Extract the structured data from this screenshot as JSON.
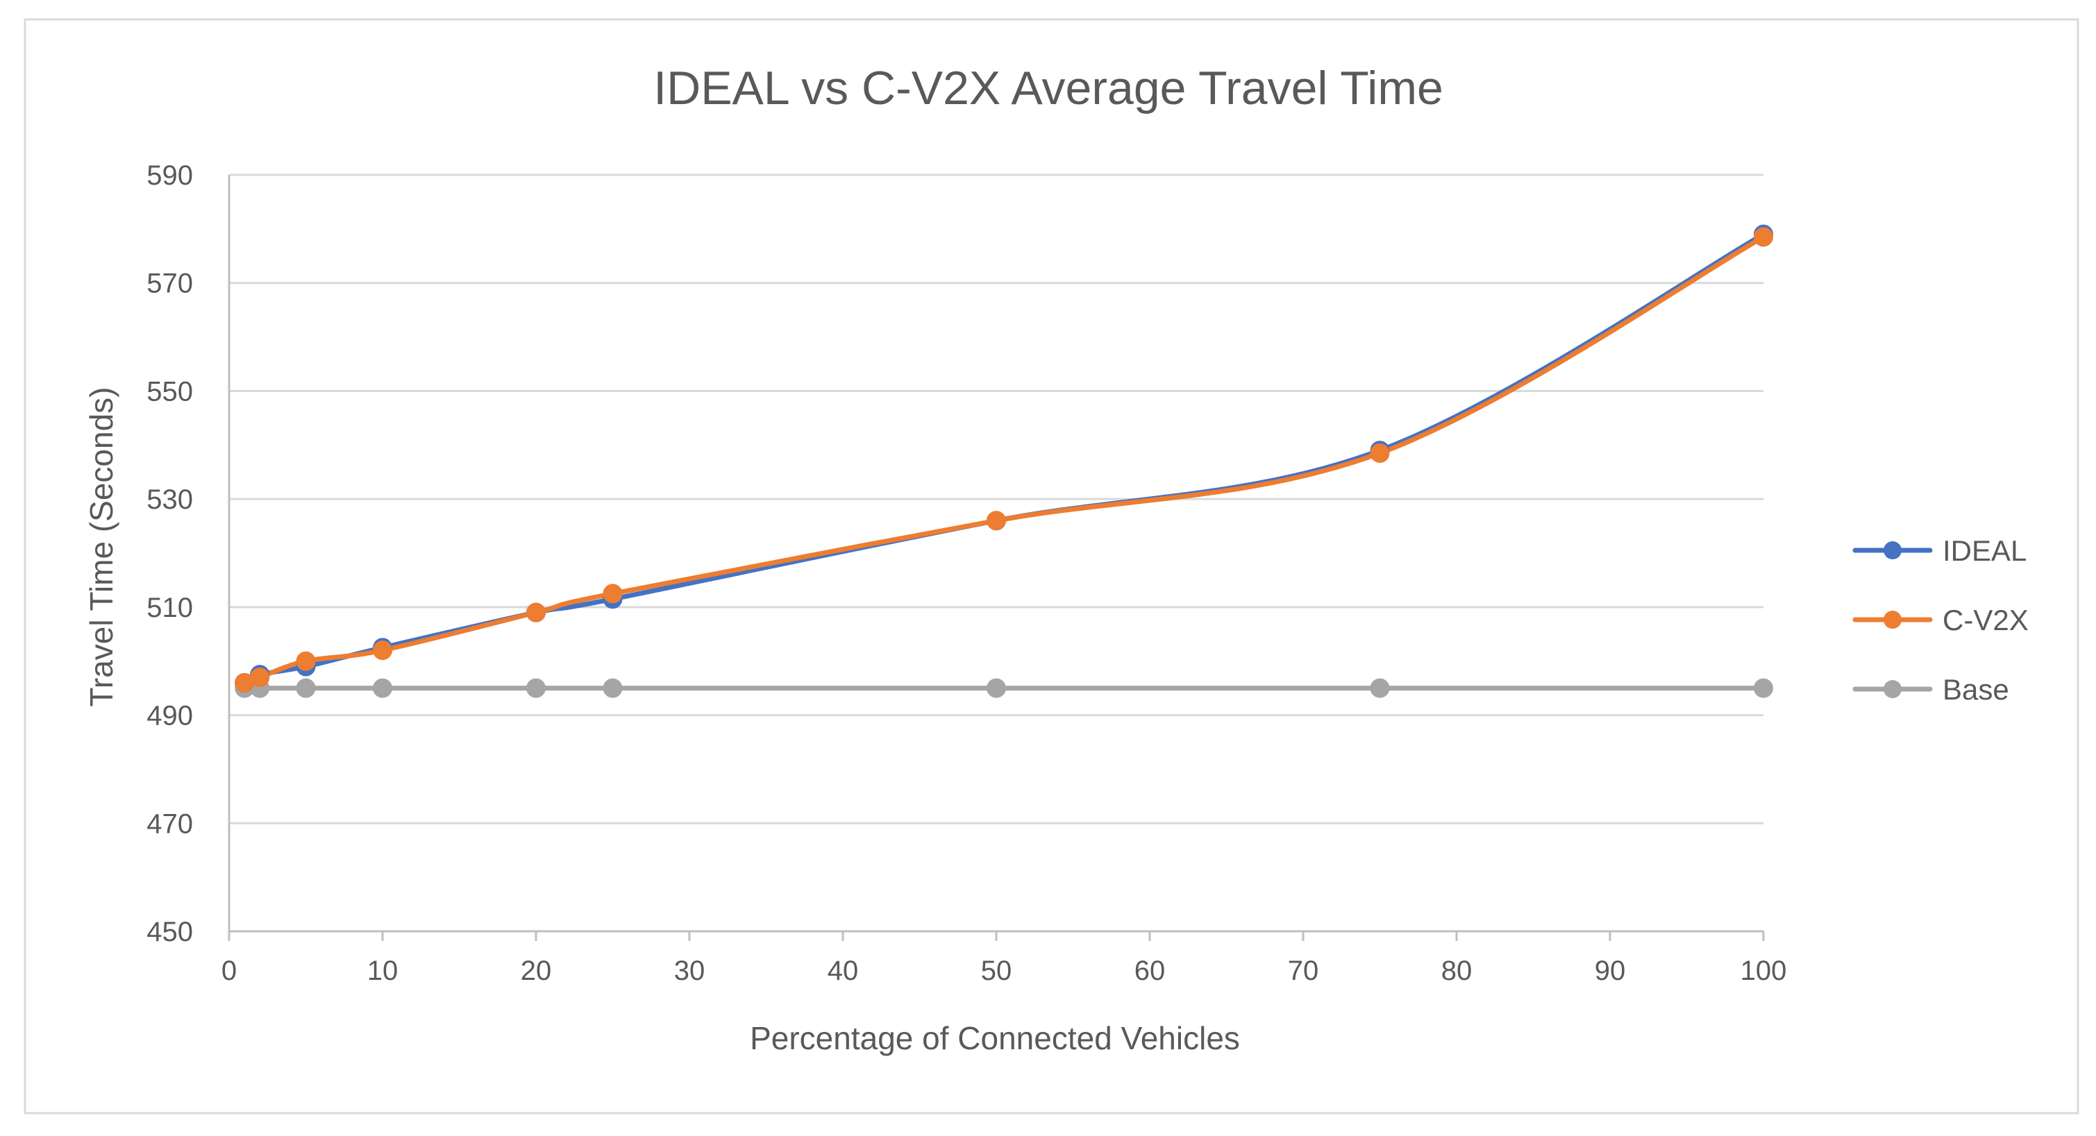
{
  "chart_data": {
    "type": "line",
    "title": "IDEAL vs C-V2X Average Travel Time",
    "xlabel": "Percentage of Connected Vehicles",
    "ylabel": "Travel Time (Seconds)",
    "xlim": [
      0,
      100
    ],
    "ylim": [
      450,
      590
    ],
    "x_ticks": [
      0,
      10,
      20,
      30,
      40,
      50,
      60,
      70,
      80,
      90,
      100
    ],
    "y_ticks": [
      450,
      470,
      490,
      510,
      530,
      550,
      570,
      590
    ],
    "grid": "horizontal",
    "legend_position": "right",
    "x": [
      1,
      2,
      5,
      10,
      20,
      25,
      50,
      75,
      100
    ],
    "series": [
      {
        "name": "IDEAL",
        "color": "#4472C4",
        "values": [
          496,
          497.5,
          499,
          502.5,
          509,
          511.5,
          526,
          539,
          579
        ]
      },
      {
        "name": "C-V2X",
        "color": "#ED7D31",
        "values": [
          496,
          497,
          500,
          502,
          509,
          512.5,
          526,
          538.5,
          578.5
        ]
      },
      {
        "name": "Base",
        "color": "#A5A5A5",
        "values": [
          495,
          495,
          495,
          495,
          495,
          495,
          495,
          495,
          495
        ]
      }
    ]
  }
}
